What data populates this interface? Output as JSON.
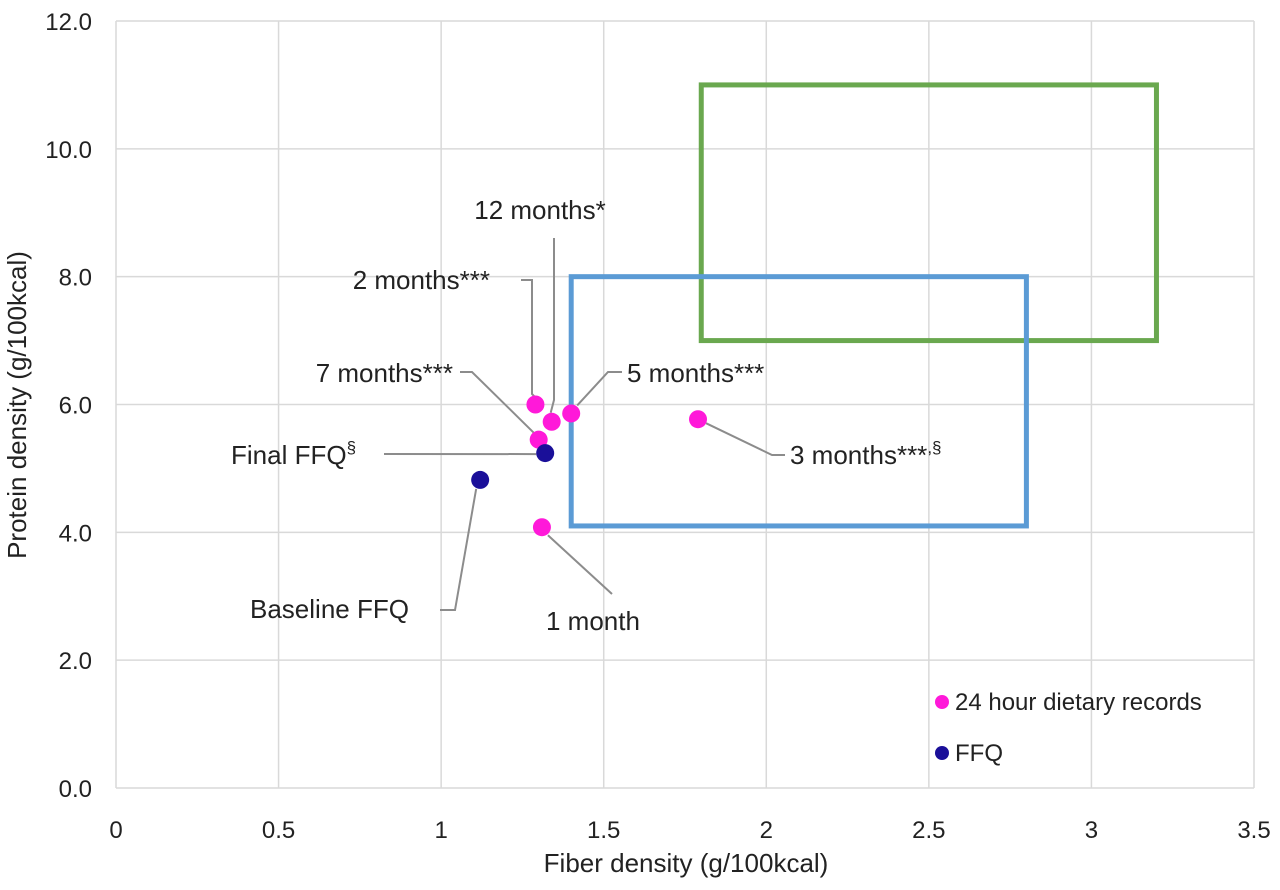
{
  "chart_data": {
    "type": "scatter",
    "xlabel": "Fiber density (g/100kcal)",
    "ylabel": "Protein density (g/100kcal)",
    "xlim": [
      0,
      3.5
    ],
    "ylim": [
      0,
      12
    ],
    "x_ticks": [
      "0",
      "0.5",
      "1",
      "1.5",
      "2",
      "2.5",
      "3",
      "3.5"
    ],
    "y_ticks": [
      "0.0",
      "2.0",
      "4.0",
      "6.0",
      "8.0",
      "10.0",
      "12.0"
    ],
    "grid": true,
    "legend_position": "bottom-right",
    "series": [
      {
        "name": "24 hour dietary records",
        "color": "#ff19d9",
        "points": [
          {
            "label": "1 month",
            "x": 1.31,
            "y": 4.08
          },
          {
            "label": "2 months***",
            "x": 1.29,
            "y": 6.0
          },
          {
            "label": "3 months***,§",
            "x": 1.79,
            "y": 5.77
          },
          {
            "label": "5 months***",
            "x": 1.4,
            "y": 5.86
          },
          {
            "label": "7 months***",
            "x": 1.3,
            "y": 5.45
          },
          {
            "label": "12 months*",
            "x": 1.34,
            "y": 5.73
          }
        ]
      },
      {
        "name": "FFQ",
        "color": "#1a0f99",
        "points": [
          {
            "label": "Baseline FFQ",
            "x": 1.12,
            "y": 4.82
          },
          {
            "label": "Final FFQ§",
            "x": 1.32,
            "y": 5.24
          }
        ]
      }
    ],
    "reference_boxes": [
      {
        "color": "#6aa84f",
        "x": [
          1.8,
          3.2
        ],
        "y": [
          7.0,
          11.0
        ]
      },
      {
        "color": "#5b9bd5",
        "x": [
          1.4,
          2.8
        ],
        "y": [
          4.1,
          8.0
        ]
      }
    ],
    "annotations": {
      "one_month": "1 month",
      "two_months": "2 months***",
      "three_months_main": "3 months***",
      "three_months_sup": ",§",
      "five_months": "5 months***",
      "seven_months": "7 months***",
      "twelve_months": "12 months*",
      "baseline_ffq": "Baseline FFQ",
      "final_ffq_main": "Final FFQ",
      "final_ffq_sup": "§"
    },
    "colors": {
      "grid": "#d9d9d9",
      "leader_line": "#8c8c8c"
    }
  }
}
